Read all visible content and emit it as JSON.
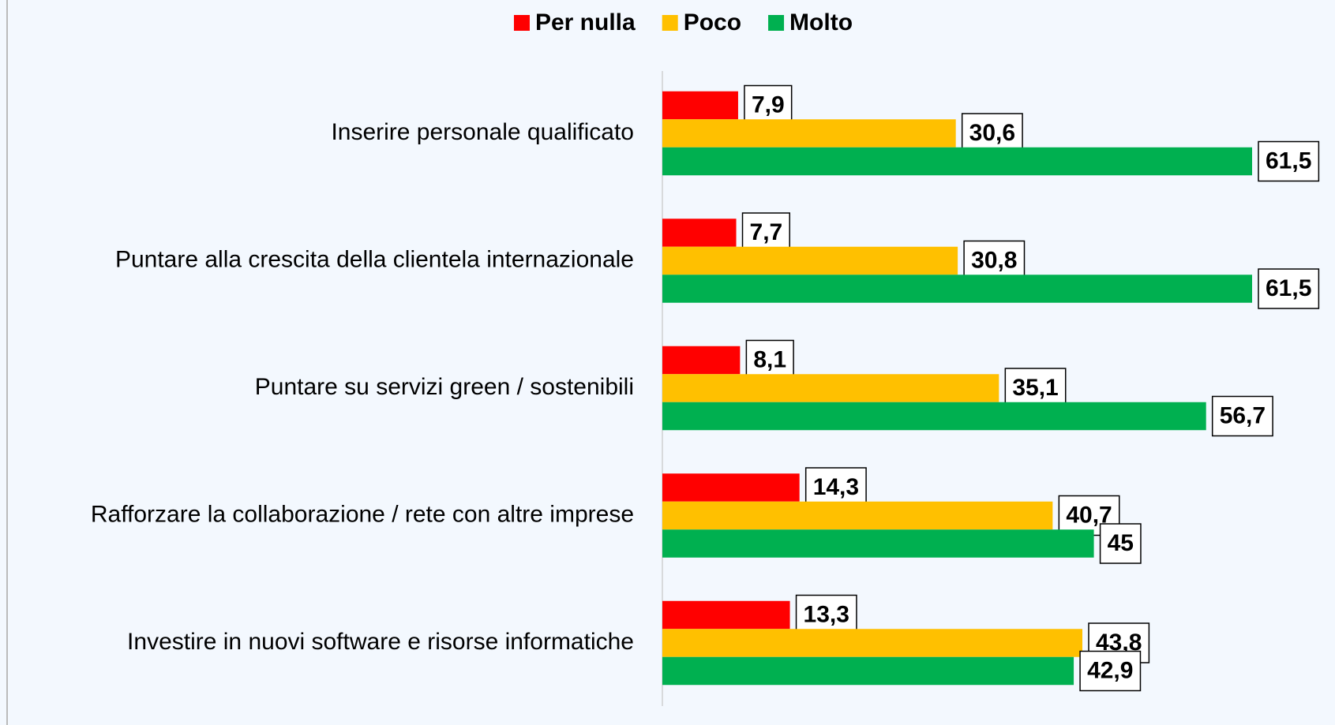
{
  "chart_data": {
    "type": "bar",
    "orientation": "horizontal",
    "categories": [
      "Inserire personale qualificato",
      "Puntare alla crescita della clientela internazionale",
      "Puntare su servizi green / sostenibili",
      "Rafforzare la collaborazione / rete con altre imprese",
      "Investire in nuovi software e risorse informatiche"
    ],
    "series": [
      {
        "name": "Per nulla",
        "color": "#ff0000",
        "values": [
          7.9,
          7.7,
          8.1,
          14.3,
          13.3
        ],
        "value_labels": [
          "7,9",
          "7,7",
          "8,1",
          "14,3",
          "13,3"
        ]
      },
      {
        "name": "Poco",
        "color": "#ffc000",
        "values": [
          30.6,
          30.8,
          35.1,
          40.7,
          43.8
        ],
        "value_labels": [
          "30,6",
          "30,8",
          "35,1",
          "40,7",
          "43,8"
        ]
      },
      {
        "name": "Molto",
        "color": "#00b050",
        "values": [
          61.5,
          61.5,
          56.7,
          45,
          42.9
        ],
        "value_labels": [
          "61,5",
          "61,5",
          "56,7",
          "45",
          "42,9"
        ]
      }
    ],
    "legend": "top"
  }
}
